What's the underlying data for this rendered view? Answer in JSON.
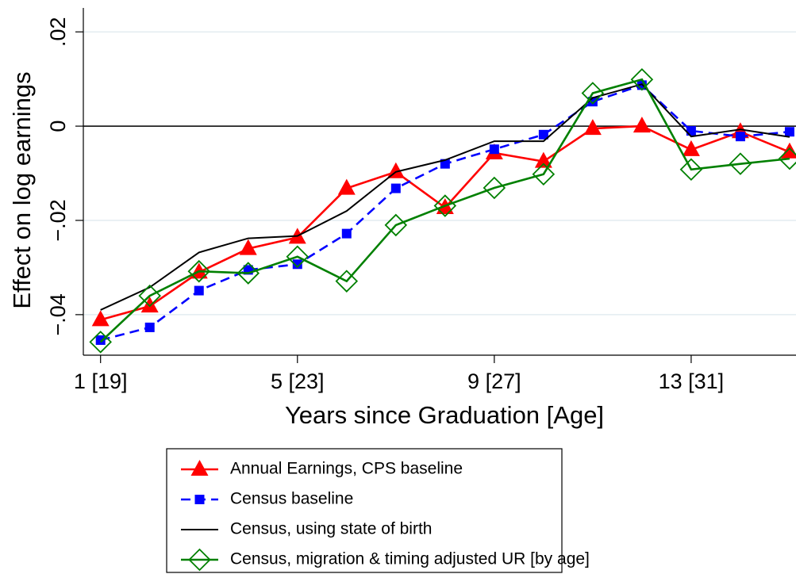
{
  "chart_data": {
    "type": "line",
    "x_label": "Years since Graduation [Age]",
    "y_label": "Effect on log earnings",
    "x": [
      1,
      2,
      3,
      4,
      5,
      6,
      7,
      8,
      9,
      10,
      11,
      12,
      13,
      14,
      15
    ],
    "xlim": [
      0.65,
      15.13
    ],
    "xticks": [
      {
        "value": 1,
        "label": "1 [19]"
      },
      {
        "value": 5,
        "label": "5 [23]"
      },
      {
        "value": 9,
        "label": "9 [27]"
      },
      {
        "value": 13,
        "label": "13 [31]"
      }
    ],
    "ylim": [
      -0.0486,
      0.0234
    ],
    "yticks": [
      {
        "value": -0.04,
        "label": "−.04"
      },
      {
        "value": -0.02,
        "label": "−.02"
      },
      {
        "value": 0,
        "label": "0"
      },
      {
        "value": 0.02,
        "label": ".02"
      }
    ],
    "grid": true,
    "hline": 0,
    "series": [
      {
        "name": "Annual Earnings, CPS baseline",
        "color": "#ff0000",
        "marker": "triangle",
        "dash": false,
        "values": [
          -0.0411,
          -0.0382,
          -0.031,
          -0.026,
          -0.0236,
          -0.0132,
          -0.0097,
          -0.0173,
          -0.0057,
          -0.0075,
          -0.0005,
          0,
          -0.005,
          -0.0012,
          -0.0055
        ]
      },
      {
        "name": "Census baseline",
        "color": "#0000ff",
        "marker": "square",
        "dash": true,
        "values": [
          -0.0454,
          -0.0427,
          -0.0349,
          -0.0305,
          -0.0293,
          -0.0228,
          -0.0132,
          -0.008,
          -0.0049,
          -0.0018,
          0.0052,
          0.0087,
          -0.001,
          -0.0022,
          -0.0012
        ]
      },
      {
        "name": "Census, using state of birth",
        "color": "#000000",
        "marker": "none",
        "dash": false,
        "values": [
          -0.039,
          -0.0342,
          -0.0268,
          -0.0238,
          -0.0233,
          -0.018,
          -0.0097,
          -0.0072,
          -0.0032,
          -0.0032,
          0.006,
          0.0089,
          -0.0022,
          -0.0007,
          -0.0023
        ]
      },
      {
        "name": "Census, migration & timing adjusted UR [by age]",
        "color": "#008000",
        "marker": "diamond",
        "dash": false,
        "values": [
          -0.0458,
          -0.036,
          -0.0308,
          -0.0312,
          -0.0277,
          -0.0329,
          -0.021,
          -0.0169,
          -0.0131,
          -0.0102,
          0.007,
          0.0099,
          -0.0092,
          -0.008,
          -0.0069
        ]
      }
    ]
  }
}
